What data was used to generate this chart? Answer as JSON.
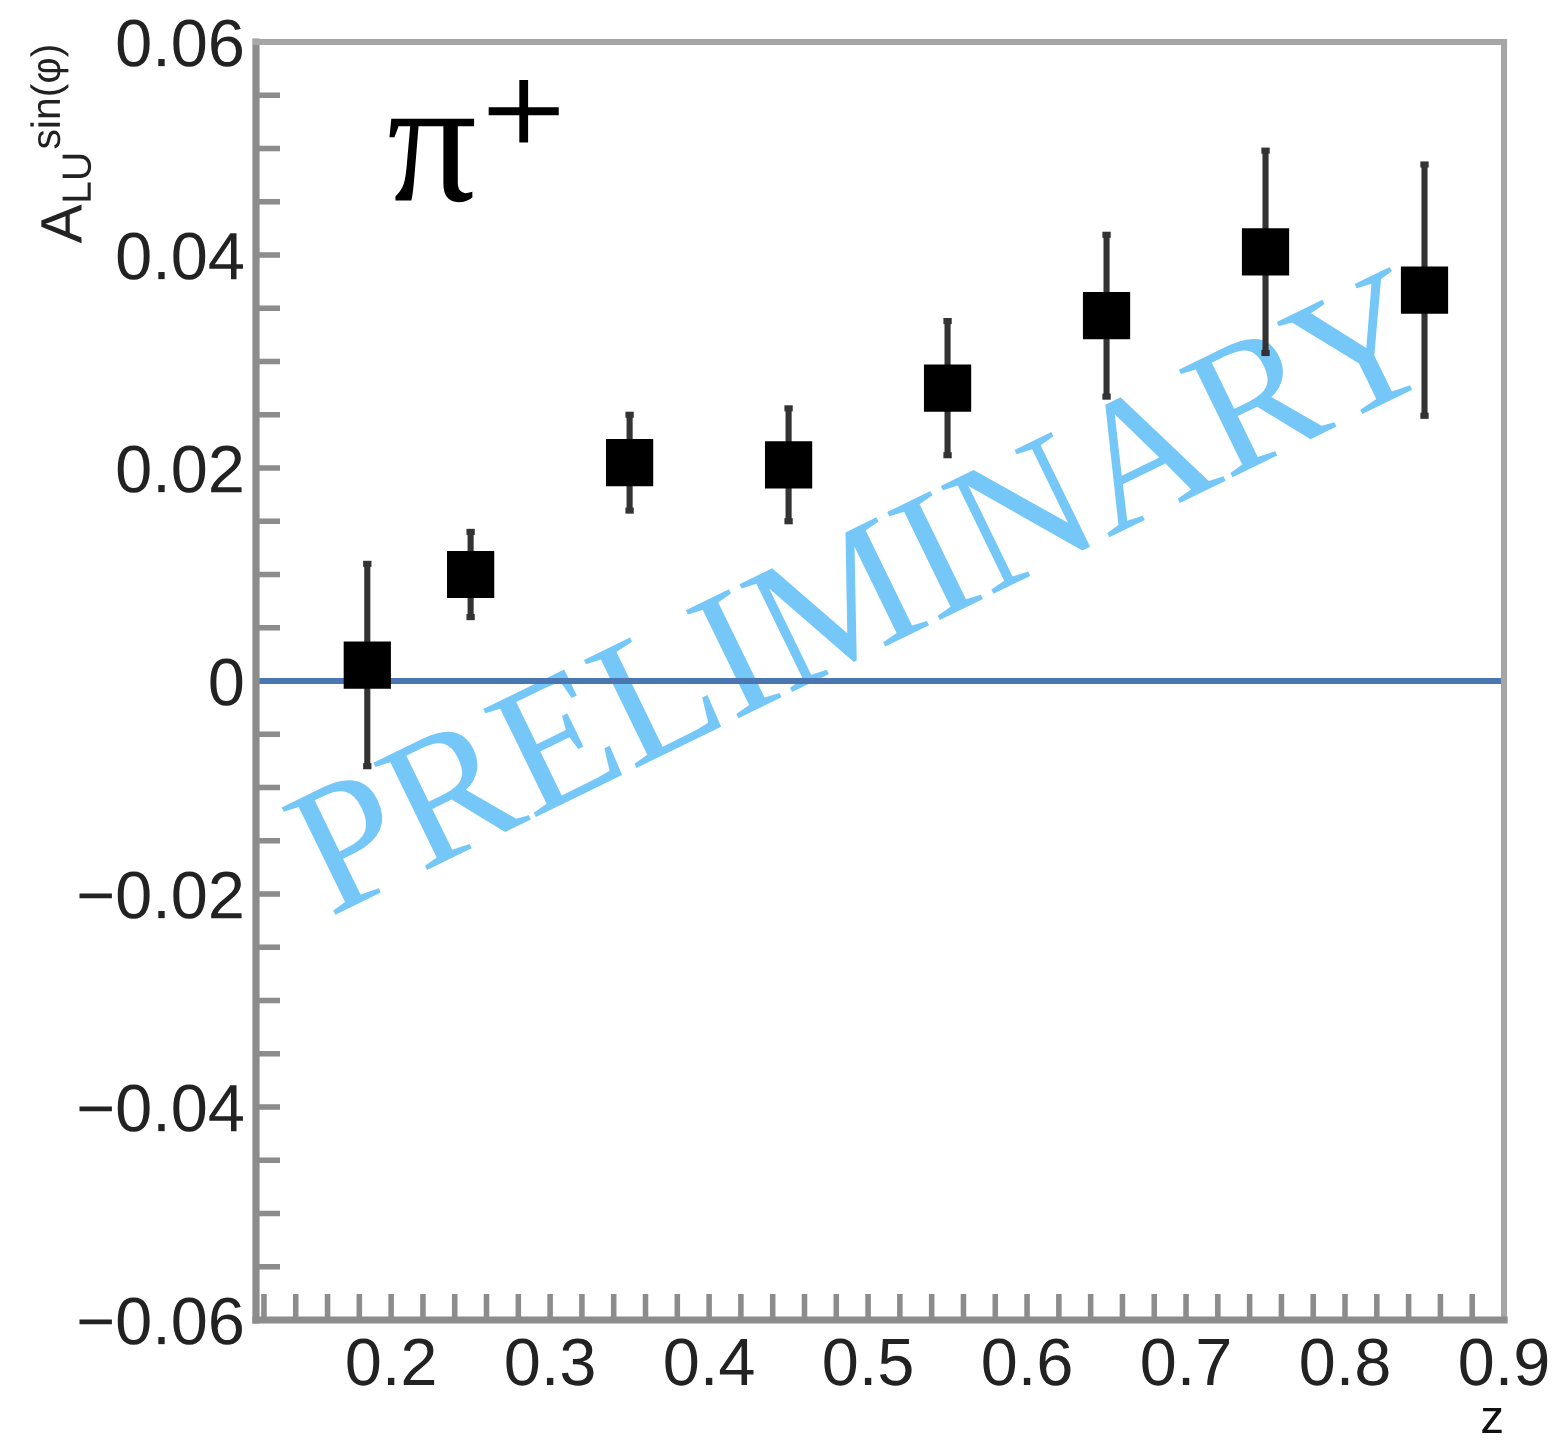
{
  "chart_data": {
    "type": "scatter",
    "title": "π⁺",
    "xlabel": "z",
    "ylabel": "A$_{LU}$$^{sin(φ)}$",
    "annotations": [
      "PRELIMINARY"
    ],
    "x": [
      0.185,
      0.25,
      0.35,
      0.45,
      0.55,
      0.65,
      0.75,
      0.85
    ],
    "series": [
      {
        "color": "#000000",
        "values": [
          0.0015,
          0.01,
          0.0205,
          0.0203,
          0.0275,
          0.0343,
          0.0403,
          0.0367
        ],
        "errors": [
          0.0095,
          0.004,
          0.0045,
          0.0053,
          0.0063,
          0.0076,
          0.0095,
          0.0118
        ]
      }
    ],
    "marker": "square",
    "grid": false,
    "xlim": [
      0.115,
      0.9
    ],
    "xticks": [
      {
        "value": 0.12,
        "label": null
      },
      {
        "value": 0.14,
        "label": null
      },
      {
        "value": 0.16,
        "label": null
      },
      {
        "value": 0.18,
        "label": null
      },
      0.2,
      {
        "value": 0.22,
        "label": null
      },
      {
        "value": 0.24,
        "label": null
      },
      {
        "value": 0.26,
        "label": null
      },
      {
        "value": 0.28,
        "label": null
      },
      0.3,
      {
        "value": 0.32,
        "label": null
      },
      {
        "value": 0.34,
        "label": null
      },
      {
        "value": 0.36,
        "label": null
      },
      {
        "value": 0.38,
        "label": null
      },
      0.4,
      {
        "value": 0.42,
        "label": null
      },
      {
        "value": 0.44,
        "label": null
      },
      {
        "value": 0.46,
        "label": null
      },
      {
        "value": 0.48,
        "label": null
      },
      0.5,
      {
        "value": 0.52,
        "label": null
      },
      {
        "value": 0.54,
        "label": null
      },
      {
        "value": 0.56,
        "label": null
      },
      {
        "value": 0.58,
        "label": null
      },
      0.6,
      {
        "value": 0.62,
        "label": null
      },
      {
        "value": 0.64,
        "label": null
      },
      {
        "value": 0.66,
        "label": null
      },
      {
        "value": 0.68,
        "label": null
      },
      0.7,
      {
        "value": 0.72,
        "label": null
      },
      {
        "value": 0.74,
        "label": null
      },
      {
        "value": 0.76,
        "label": null
      },
      {
        "value": 0.78,
        "label": null
      },
      0.8,
      {
        "value": 0.82,
        "label": null
      },
      {
        "value": 0.84,
        "label": null
      },
      {
        "value": 0.86,
        "label": null
      },
      {
        "value": 0.88,
        "label": null
      },
      0.9
    ],
    "ylim": [
      -0.06,
      0.06
    ],
    "yticks": [
      {
        "value": -0.06,
        "label": "−0.06"
      },
      {
        "value": -0.055,
        "label": null
      },
      {
        "value": -0.05,
        "label": null
      },
      {
        "value": -0.045,
        "label": null
      },
      {
        "value": -0.04,
        "label": "−0.04"
      },
      {
        "value": -0.035,
        "label": null
      },
      {
        "value": -0.03,
        "label": null
      },
      {
        "value": -0.025,
        "label": null
      },
      {
        "value": -0.02,
        "label": "−0.02"
      },
      {
        "value": -0.015,
        "label": null
      },
      {
        "value": -0.01,
        "label": null
      },
      {
        "value": -0.005,
        "label": null
      },
      0,
      {
        "value": 0.005,
        "label": null
      },
      {
        "value": 0.01,
        "label": null
      },
      {
        "value": 0.015,
        "label": null
      },
      0.02,
      {
        "value": 0.025,
        "label": null
      },
      {
        "value": 0.03,
        "label": null
      },
      {
        "value": 0.035,
        "label": null
      },
      0.04,
      {
        "value": 0.045,
        "label": null
      },
      {
        "value": 0.05,
        "label": null
      },
      {
        "value": 0.055,
        "label": null
      },
      0.06
    ],
    "ref_lines": [
      {
        "axis": "y",
        "value": 0,
        "color": "#4a76b2"
      }
    ]
  }
}
